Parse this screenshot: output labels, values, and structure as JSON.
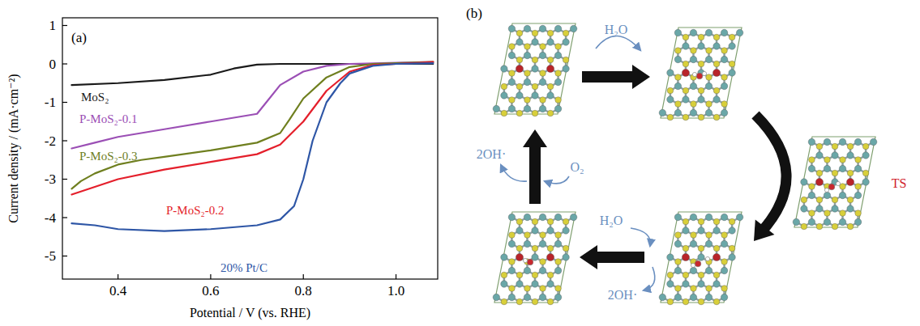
{
  "chart_data": {
    "type": "line",
    "title": "(a)",
    "x_label": "Potential / V (vs. RHE)",
    "y_label": "Current density / (mA·cm⁻²)",
    "xlim": [
      0.28,
      1.09
    ],
    "ylim": [
      -5.6,
      1.2
    ],
    "xticks": [
      0.4,
      0.6,
      0.8,
      {
        "value": 1,
        "label": "1.0"
      }
    ],
    "yticks": [
      1,
      0,
      -1,
      -2,
      -3,
      -4,
      -5
    ],
    "grid": false,
    "series": [
      {
        "name": "MoS₂",
        "color": "#1a1a1a",
        "x": [
          0.3,
          0.4,
          0.5,
          0.6,
          0.65,
          0.7,
          0.75,
          0.85,
          1.0,
          1.08
        ],
        "values": [
          -0.55,
          -0.5,
          -0.42,
          -0.28,
          -0.12,
          -0.02,
          0,
          0,
          0,
          0
        ]
      },
      {
        "name": "P-MoS₂-0.1",
        "color": "#9b4fb5",
        "x": [
          0.3,
          0.35,
          0.4,
          0.5,
          0.6,
          0.7,
          0.72,
          0.75,
          0.8,
          0.85,
          0.9,
          1.0,
          1.08
        ],
        "values": [
          -2.2,
          -2.05,
          -1.9,
          -1.7,
          -1.5,
          -1.3,
          -1.0,
          -0.55,
          -0.2,
          -0.05,
          0,
          0.03,
          0.05
        ]
      },
      {
        "name": "P-MoS₂-0.3",
        "color": "#6f7f1f",
        "x": [
          0.3,
          0.32,
          0.35,
          0.4,
          0.45,
          0.5,
          0.6,
          0.7,
          0.75,
          0.77,
          0.8,
          0.85,
          0.9,
          0.95,
          1.08
        ],
        "values": [
          -3.25,
          -3.05,
          -2.85,
          -2.62,
          -2.5,
          -2.42,
          -2.25,
          -2.05,
          -1.8,
          -1.45,
          -0.9,
          -0.35,
          -0.08,
          0,
          0.05
        ]
      },
      {
        "name": "P-MoS₂-0.2",
        "color": "#e41f2b",
        "x": [
          0.3,
          0.35,
          0.4,
          0.5,
          0.6,
          0.7,
          0.75,
          0.8,
          0.85,
          0.9,
          0.95,
          1.0,
          1.08
        ],
        "values": [
          -3.4,
          -3.2,
          -3.0,
          -2.75,
          -2.55,
          -2.35,
          -2.1,
          -1.5,
          -0.7,
          -0.2,
          -0.03,
          0,
          0.05
        ]
      },
      {
        "name": "20% Pt/C",
        "color": "#2e56a6",
        "x": [
          0.3,
          0.35,
          0.4,
          0.5,
          0.6,
          0.7,
          0.75,
          0.78,
          0.8,
          0.82,
          0.85,
          0.88,
          0.9,
          0.95,
          1.0,
          1.08
        ],
        "values": [
          -4.15,
          -4.2,
          -4.3,
          -4.35,
          -4.3,
          -4.2,
          -4.05,
          -3.7,
          -3.0,
          -2.0,
          -1.0,
          -0.5,
          -0.25,
          -0.05,
          0,
          0.02
        ]
      }
    ]
  },
  "diagram": {
    "label": "(b)",
    "transition_state": "TS",
    "first_water": "H₂O",
    "second_water": "H₂O",
    "second_product": "2OH·",
    "oxygen": "O₂",
    "final_product": "2OH·"
  }
}
